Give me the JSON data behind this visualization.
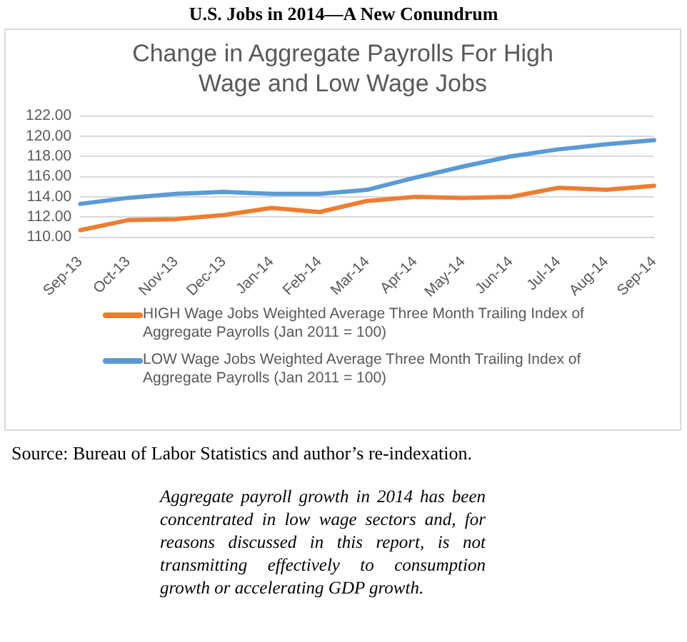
{
  "chart_data": {
    "type": "line",
    "title": "U.S. Jobs in 2014—A New Conundrum",
    "subtitle": "Change in Aggregate Payrolls For High Wage and Low Wage Jobs",
    "categories": [
      "Sep-13",
      "Oct-13",
      "Nov-13",
      "Dec-13",
      "Jan-14",
      "Feb-14",
      "Mar-14",
      "Apr-14",
      "May-14",
      "Jun-14",
      "Jul-14",
      "Aug-14",
      "Sep-14"
    ],
    "series": [
      {
        "name": "HIGH Wage Jobs Weighted Average Three Month Trailing Index of Aggregate Payrolls (Jan 2011 = 100)",
        "color": "#ed7d31",
        "values": [
          110.7,
          111.7,
          111.8,
          112.2,
          112.9,
          112.5,
          113.6,
          114.0,
          113.9,
          114.0,
          114.9,
          114.7,
          115.1
        ]
      },
      {
        "name": "LOW Wage Jobs Weighted Average Three Month Trailing Index of Aggregate Payrolls (Jan 2011 = 100)",
        "color": "#5b9bd5",
        "values": [
          113.3,
          113.9,
          114.3,
          114.5,
          114.3,
          114.3,
          114.7,
          115.9,
          117.0,
          118.0,
          118.7,
          119.2,
          119.6
        ]
      }
    ],
    "ylim": [
      110,
      122
    ],
    "yticks": [
      {
        "value": 110,
        "label": "110.00"
      },
      {
        "value": 112,
        "label": "112.00"
      },
      {
        "value": 114,
        "label": "114.00"
      },
      {
        "value": 116,
        "label": "116.00"
      },
      {
        "value": 118,
        "label": "118.00"
      },
      {
        "value": 120,
        "label": "120.00"
      },
      {
        "value": 122,
        "label": "122.00"
      }
    ],
    "grid": "y",
    "legend": "bottom",
    "marker": "none",
    "line_style": "solid",
    "annotations": [
      "Source: Bureau of Labor Statistics  and author’s re-indexation.",
      "Aggregate payroll growth in 2014 has been concentrated in low wage sectors and, for reasons discussed in this report, is not transmitting effectively to consumption growth or accelerating GDP growth."
    ]
  }
}
